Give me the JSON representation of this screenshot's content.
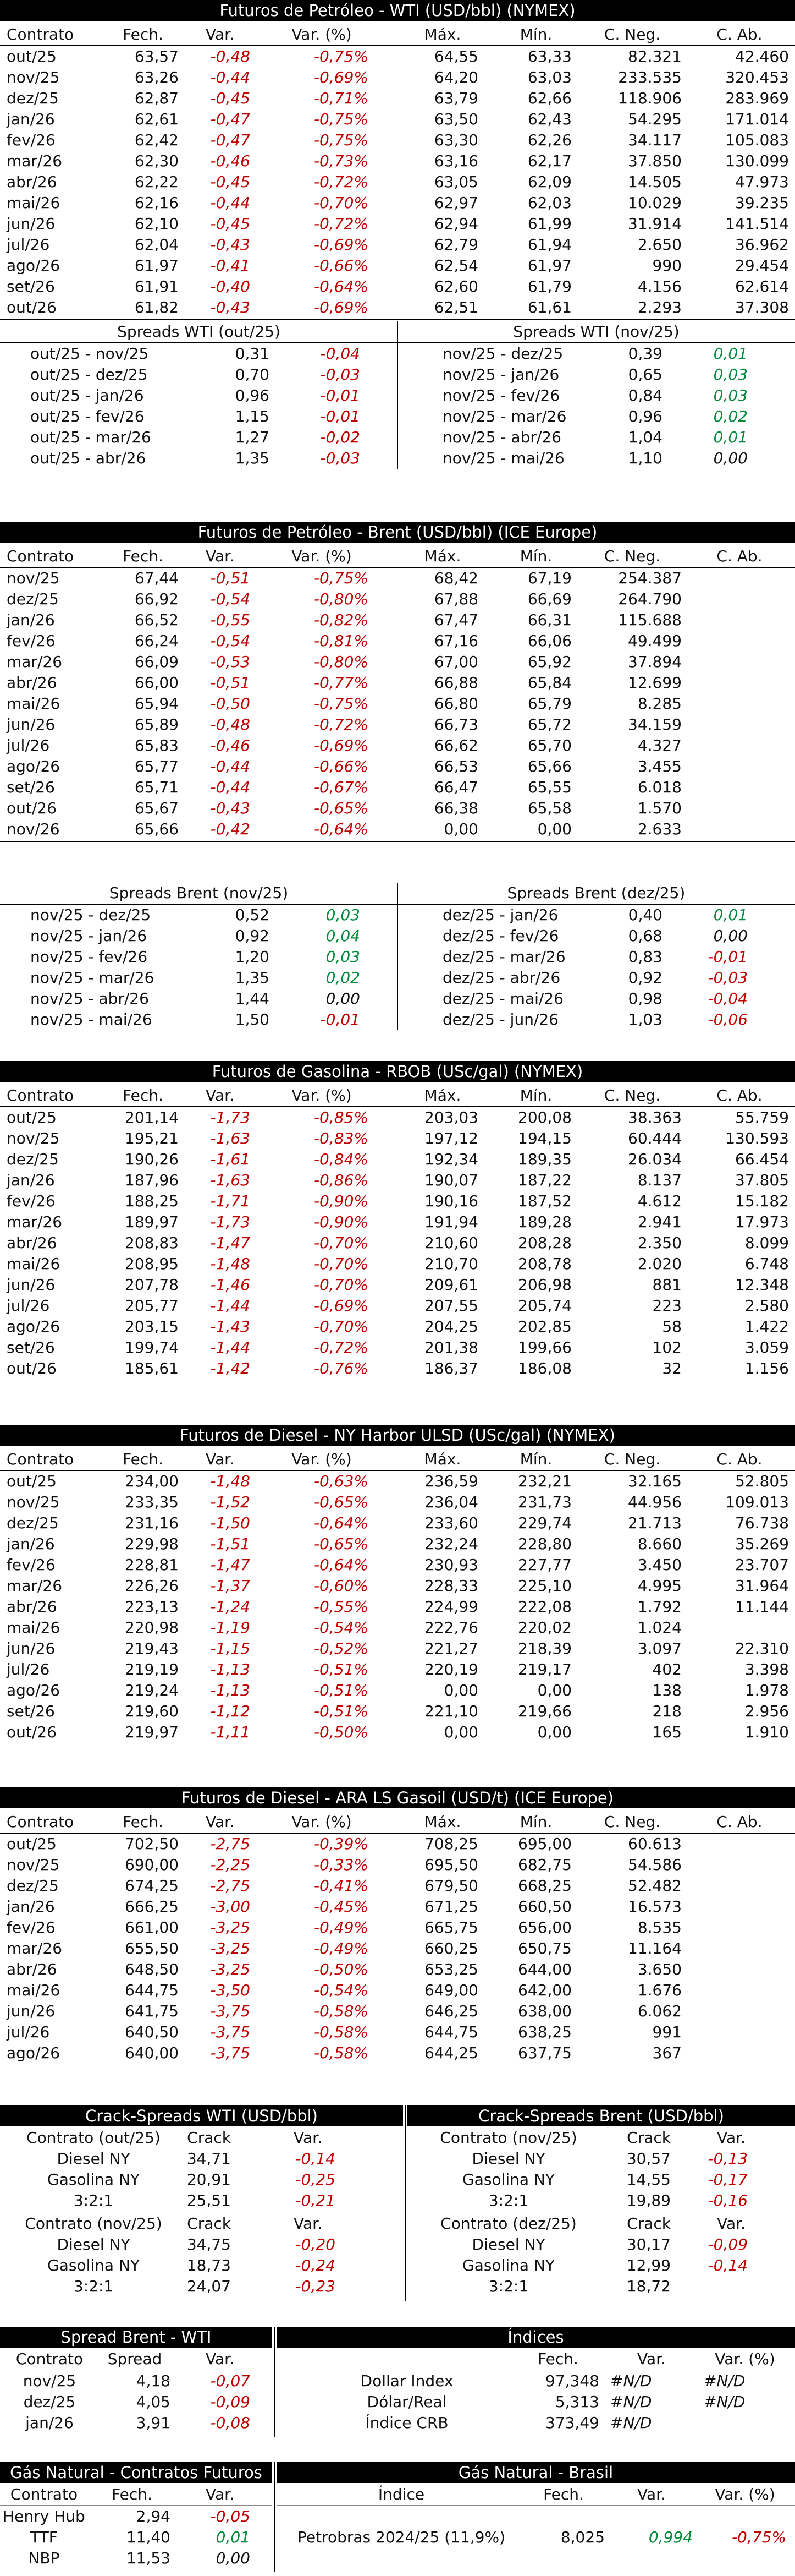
{
  "wti": {
    "title": "Futuros de Petróleo - WTI (USD/bbl) (NYMEX)",
    "headers": [
      "Contrato",
      "Fech.",
      "Var.",
      "Var. (%)",
      "Máx.",
      "Mín.",
      "C. Neg.",
      "C. Ab."
    ],
    "rows": [
      [
        "out/25",
        "63,57",
        "-0,48",
        "-0,75%",
        "64,55",
        "63,33",
        "82.321",
        "42.460"
      ],
      [
        "nov/25",
        "63,26",
        "-0,44",
        "-0,69%",
        "64,20",
        "63,03",
        "233.535",
        "320.453"
      ],
      [
        "dez/25",
        "62,87",
        "-0,45",
        "-0,71%",
        "63,79",
        "62,66",
        "118.906",
        "283.969"
      ],
      [
        "jan/26",
        "62,61",
        "-0,47",
        "-0,75%",
        "63,50",
        "62,43",
        "54.295",
        "171.014"
      ],
      [
        "fev/26",
        "62,42",
        "-0,47",
        "-0,75%",
        "63,30",
        "62,26",
        "34.117",
        "105.083"
      ],
      [
        "mar/26",
        "62,30",
        "-0,46",
        "-0,73%",
        "63,16",
        "62,17",
        "37.850",
        "130.099"
      ],
      [
        "abr/26",
        "62,22",
        "-0,45",
        "-0,72%",
        "63,05",
        "62,09",
        "14.505",
        "47.973"
      ],
      [
        "mai/26",
        "62,16",
        "-0,44",
        "-0,70%",
        "62,97",
        "62,03",
        "10.029",
        "39.235"
      ],
      [
        "jun/26",
        "62,10",
        "-0,45",
        "-0,72%",
        "62,94",
        "61,99",
        "31.914",
        "141.514"
      ],
      [
        "jul/26",
        "62,04",
        "-0,43",
        "-0,69%",
        "62,79",
        "61,94",
        "2.650",
        "36.962"
      ],
      [
        "ago/26",
        "61,97",
        "-0,41",
        "-0,66%",
        "62,54",
        "61,97",
        "990",
        "29.454"
      ],
      [
        "set/26",
        "61,91",
        "-0,40",
        "-0,64%",
        "62,60",
        "61,79",
        "4.156",
        "62.614"
      ],
      [
        "out/26",
        "61,82",
        "-0,43",
        "-0,69%",
        "62,51",
        "61,61",
        "2.293",
        "37.308"
      ]
    ],
    "spreads_left_title": "Spreads WTI (out/25)",
    "spreads_left": [
      [
        "out/25 - nov/25",
        "0,31",
        "-0,04"
      ],
      [
        "out/25 - dez/25",
        "0,70",
        "-0,03"
      ],
      [
        "out/25 - jan/26",
        "0,96",
        "-0,01"
      ],
      [
        "out/25 - fev/26",
        "1,15",
        "-0,01"
      ],
      [
        "out/25 - mar/26",
        "1,27",
        "-0,02"
      ],
      [
        "out/25 - abr/26",
        "1,35",
        "-0,03"
      ]
    ],
    "spreads_right_title": "Spreads WTI (nov/25)",
    "spreads_right": [
      [
        "nov/25 - dez/25",
        "0,39",
        "0,01"
      ],
      [
        "nov/25 - jan/26",
        "0,65",
        "0,03"
      ],
      [
        "nov/25 - fev/26",
        "0,84",
        "0,03"
      ],
      [
        "nov/25 - mar/26",
        "0,96",
        "0,02"
      ],
      [
        "nov/25 - abr/26",
        "1,04",
        "0,01"
      ],
      [
        "nov/25 - mai/26",
        "1,10",
        "0,00"
      ]
    ]
  },
  "brent": {
    "title": "Futuros de Petróleo - Brent (USD/bbl) (ICE Europe)",
    "headers": [
      "Contrato",
      "Fech.",
      "Var.",
      "Var. (%)",
      "Máx.",
      "Mín.",
      "C. Neg.",
      "C. Ab."
    ],
    "rows": [
      [
        "nov/25",
        "67,44",
        "-0,51",
        "-0,75%",
        "68,42",
        "67,19",
        "254.387",
        ""
      ],
      [
        "dez/25",
        "66,92",
        "-0,54",
        "-0,80%",
        "67,88",
        "66,69",
        "264.790",
        ""
      ],
      [
        "jan/26",
        "66,52",
        "-0,55",
        "-0,82%",
        "67,47",
        "66,31",
        "115.688",
        ""
      ],
      [
        "fev/26",
        "66,24",
        "-0,54",
        "-0,81%",
        "67,16",
        "66,06",
        "49.499",
        ""
      ],
      [
        "mar/26",
        "66,09",
        "-0,53",
        "-0,80%",
        "67,00",
        "65,92",
        "37.894",
        ""
      ],
      [
        "abr/26",
        "66,00",
        "-0,51",
        "-0,77%",
        "66,88",
        "65,84",
        "12.699",
        ""
      ],
      [
        "mai/26",
        "65,94",
        "-0,50",
        "-0,75%",
        "66,80",
        "65,79",
        "8.285",
        ""
      ],
      [
        "jun/26",
        "65,89",
        "-0,48",
        "-0,72%",
        "66,73",
        "65,72",
        "34.159",
        ""
      ],
      [
        "jul/26",
        "65,83",
        "-0,46",
        "-0,69%",
        "66,62",
        "65,70",
        "4.327",
        ""
      ],
      [
        "ago/26",
        "65,77",
        "-0,44",
        "-0,66%",
        "66,53",
        "65,66",
        "3.455",
        ""
      ],
      [
        "set/26",
        "65,71",
        "-0,44",
        "-0,67%",
        "66,47",
        "65,55",
        "6.018",
        ""
      ],
      [
        "out/26",
        "65,67",
        "-0,43",
        "-0,65%",
        "66,38",
        "65,58",
        "1.570",
        ""
      ],
      [
        "nov/26",
        "65,66",
        "-0,42",
        "-0,64%",
        "0,00",
        "0,00",
        "2.633",
        ""
      ]
    ],
    "spreads_left_title": "Spreads Brent (nov/25)",
    "spreads_left": [
      [
        "nov/25 - dez/25",
        "0,52",
        "0,03"
      ],
      [
        "nov/25 - jan/26",
        "0,92",
        "0,04"
      ],
      [
        "nov/25 - fev/26",
        "1,20",
        "0,03"
      ],
      [
        "nov/25 - mar/26",
        "1,35",
        "0,02"
      ],
      [
        "nov/25 - abr/26",
        "1,44",
        "0,00"
      ],
      [
        "nov/25 - mai/26",
        "1,50",
        "-0,01"
      ]
    ],
    "spreads_right_title": "Spreads Brent (dez/25)",
    "spreads_right": [
      [
        "dez/25 - jan/26",
        "0,40",
        "0,01"
      ],
      [
        "dez/25 - fev/26",
        "0,68",
        "0,00"
      ],
      [
        "dez/25 - mar/26",
        "0,83",
        "-0,01"
      ],
      [
        "dez/25 - abr/26",
        "0,92",
        "-0,03"
      ],
      [
        "dez/25 - mai/26",
        "0,98",
        "-0,04"
      ],
      [
        "dez/25 - jun/26",
        "1,03",
        "-0,06"
      ]
    ]
  },
  "rbob": {
    "title": "Futuros de Gasolina - RBOB (USc/gal) (NYMEX)",
    "headers": [
      "Contrato",
      "Fech.",
      "Var.",
      "Var. (%)",
      "Máx.",
      "Mín.",
      "C. Neg.",
      "C. Ab."
    ],
    "rows": [
      [
        "out/25",
        "201,14",
        "-1,73",
        "-0,85%",
        "203,03",
        "200,08",
        "38.363",
        "55.759"
      ],
      [
        "nov/25",
        "195,21",
        "-1,63",
        "-0,83%",
        "197,12",
        "194,15",
        "60.444",
        "130.593"
      ],
      [
        "dez/25",
        "190,26",
        "-1,61",
        "-0,84%",
        "192,34",
        "189,35",
        "26.034",
        "66.454"
      ],
      [
        "jan/26",
        "187,96",
        "-1,63",
        "-0,86%",
        "190,07",
        "187,22",
        "8.137",
        "37.805"
      ],
      [
        "fev/26",
        "188,25",
        "-1,71",
        "-0,90%",
        "190,16",
        "187,52",
        "4.612",
        "15.182"
      ],
      [
        "mar/26",
        "189,97",
        "-1,73",
        "-0,90%",
        "191,94",
        "189,28",
        "2.941",
        "17.973"
      ],
      [
        "abr/26",
        "208,83",
        "-1,47",
        "-0,70%",
        "210,60",
        "208,28",
        "2.350",
        "8.099"
      ],
      [
        "mai/26",
        "208,95",
        "-1,48",
        "-0,70%",
        "210,70",
        "208,78",
        "2.020",
        "6.748"
      ],
      [
        "jun/26",
        "207,78",
        "-1,46",
        "-0,70%",
        "209,61",
        "206,98",
        "881",
        "12.348"
      ],
      [
        "jul/26",
        "205,77",
        "-1,44",
        "-0,69%",
        "207,55",
        "205,74",
        "223",
        "2.580"
      ],
      [
        "ago/26",
        "203,15",
        "-1,43",
        "-0,70%",
        "204,25",
        "202,85",
        "58",
        "1.422"
      ],
      [
        "set/26",
        "199,74",
        "-1,44",
        "-0,72%",
        "201,38",
        "199,66",
        "102",
        "3.059"
      ],
      [
        "out/26",
        "185,61",
        "-1,42",
        "-0,76%",
        "186,37",
        "186,08",
        "32",
        "1.156"
      ]
    ]
  },
  "ulsd": {
    "title": "Futuros de Diesel - NY Harbor ULSD (USc/gal) (NYMEX)",
    "headers": [
      "Contrato",
      "Fech.",
      "Var.",
      "Var. (%)",
      "Máx.",
      "Mín.",
      "C. Neg.",
      "C. Ab."
    ],
    "rows": [
      [
        "out/25",
        "234,00",
        "-1,48",
        "-0,63%",
        "236,59",
        "232,21",
        "32.165",
        "52.805"
      ],
      [
        "nov/25",
        "233,35",
        "-1,52",
        "-0,65%",
        "236,04",
        "231,73",
        "44.956",
        "109.013"
      ],
      [
        "dez/25",
        "231,16",
        "-1,50",
        "-0,64%",
        "233,60",
        "229,74",
        "21.713",
        "76.738"
      ],
      [
        "jan/26",
        "229,98",
        "-1,51",
        "-0,65%",
        "232,24",
        "228,80",
        "8.660",
        "35.269"
      ],
      [
        "fev/26",
        "228,81",
        "-1,47",
        "-0,64%",
        "230,93",
        "227,77",
        "3.450",
        "23.707"
      ],
      [
        "mar/26",
        "226,26",
        "-1,37",
        "-0,60%",
        "228,33",
        "225,10",
        "4.995",
        "31.964"
      ],
      [
        "abr/26",
        "223,13",
        "-1,24",
        "-0,55%",
        "224,99",
        "222,08",
        "1.792",
        "11.144"
      ],
      [
        "mai/26",
        "220,98",
        "-1,19",
        "-0,54%",
        "222,76",
        "220,02",
        "1.024",
        ""
      ],
      [
        "jun/26",
        "219,43",
        "-1,15",
        "-0,52%",
        "221,27",
        "218,39",
        "3.097",
        "22.310"
      ],
      [
        "jul/26",
        "219,19",
        "-1,13",
        "-0,51%",
        "220,19",
        "219,17",
        "402",
        "3.398"
      ],
      [
        "ago/26",
        "219,24",
        "-1,13",
        "-0,51%",
        "0,00",
        "0,00",
        "138",
        "1.978"
      ],
      [
        "set/26",
        "219,60",
        "-1,12",
        "-0,51%",
        "221,10",
        "219,66",
        "218",
        "2.956"
      ],
      [
        "out/26",
        "219,97",
        "-1,11",
        "-0,50%",
        "0,00",
        "0,00",
        "165",
        "1.910"
      ]
    ]
  },
  "gasoil": {
    "title": "Futuros de Diesel - ARA LS Gasoil (USD/t) (ICE Europe)",
    "headers": [
      "Contrato",
      "Fech.",
      "Var.",
      "Var. (%)",
      "Máx.",
      "Mín.",
      "C. Neg.",
      "C. Ab."
    ],
    "rows": [
      [
        "out/25",
        "702,50",
        "-2,75",
        "-0,39%",
        "708,25",
        "695,00",
        "60.613",
        ""
      ],
      [
        "nov/25",
        "690,00",
        "-2,25",
        "-0,33%",
        "695,50",
        "682,75",
        "54.586",
        ""
      ],
      [
        "dez/25",
        "674,25",
        "-2,75",
        "-0,41%",
        "679,50",
        "668,25",
        "52.482",
        ""
      ],
      [
        "jan/26",
        "666,25",
        "-3,00",
        "-0,45%",
        "671,25",
        "660,50",
        "16.573",
        ""
      ],
      [
        "fev/26",
        "661,00",
        "-3,25",
        "-0,49%",
        "665,75",
        "656,00",
        "8.535",
        ""
      ],
      [
        "mar/26",
        "655,50",
        "-3,25",
        "-0,49%",
        "660,25",
        "650,75",
        "11.164",
        ""
      ],
      [
        "abr/26",
        "648,50",
        "-3,25",
        "-0,50%",
        "653,25",
        "644,00",
        "3.650",
        ""
      ],
      [
        "mai/26",
        "644,75",
        "-3,50",
        "-0,54%",
        "649,00",
        "642,00",
        "1.676",
        ""
      ],
      [
        "jun/26",
        "641,75",
        "-3,75",
        "-0,58%",
        "646,25",
        "638,00",
        "6.062",
        ""
      ],
      [
        "jul/26",
        "640,50",
        "-3,75",
        "-0,58%",
        "644,75",
        "638,25",
        "991",
        ""
      ],
      [
        "ago/26",
        "640,00",
        "-3,75",
        "-0,58%",
        "644,25",
        "637,75",
        "367",
        ""
      ]
    ]
  },
  "crack": {
    "left_title": "Crack-Spreads WTI (USD/bbl)",
    "right_title": "Crack-Spreads Brent (USD/bbl)",
    "left_groups": [
      {
        "headers": [
          "Contrato (out/25)",
          "Crack",
          "Var."
        ],
        "rows": [
          [
            "Diesel NY",
            "34,71",
            "-0,14"
          ],
          [
            "Gasolina NY",
            "20,91",
            "-0,25"
          ],
          [
            "3:2:1",
            "25,51",
            "-0,21"
          ]
        ]
      },
      {
        "headers": [
          "Contrato (nov/25)",
          "Crack",
          "Var."
        ],
        "rows": [
          [
            "Diesel NY",
            "34,75",
            "-0,20"
          ],
          [
            "Gasolina NY",
            "18,73",
            "-0,24"
          ],
          [
            "3:2:1",
            "24,07",
            "-0,23"
          ]
        ]
      }
    ],
    "right_groups": [
      {
        "headers": [
          "Contrato (nov/25)",
          "Crack",
          "Var."
        ],
        "rows": [
          [
            "Diesel NY",
            "30,57",
            "-0,13"
          ],
          [
            "Gasolina NY",
            "14,55",
            "-0,17"
          ],
          [
            "3:2:1",
            "19,89",
            "-0,16"
          ]
        ]
      },
      {
        "headers": [
          "Contrato (dez/25)",
          "Crack",
          "Var."
        ],
        "rows": [
          [
            "Diesel NY",
            "30,17",
            "-0,09"
          ],
          [
            "Gasolina NY",
            "12,99",
            "-0,14"
          ],
          [
            "3:2:1",
            "18,72",
            ""
          ]
        ]
      }
    ]
  },
  "spread_bw": {
    "title": "Spread Brent - WTI",
    "headers": [
      "Contrato",
      "Spread",
      "Var."
    ],
    "rows": [
      [
        "nov/25",
        "4,18",
        "-0,07"
      ],
      [
        "dez/25",
        "4,05",
        "-0,09"
      ],
      [
        "jan/26",
        "3,91",
        "-0,08"
      ]
    ]
  },
  "indices": {
    "title": "Índices",
    "headers": [
      "",
      "Fech.",
      "Var.",
      "Var. (%)"
    ],
    "rows": [
      [
        "Dollar Index",
        "97,348",
        "#N/D",
        "#N/D"
      ],
      [
        "Dólar/Real",
        "5,313",
        "#N/D",
        "#N/D"
      ],
      [
        "Índice CRB",
        "373,49",
        "#N/D",
        ""
      ]
    ]
  },
  "gas_futures": {
    "title": "Gás Natural - Contratos Futuros",
    "headers": [
      "Contrato",
      "Fech.",
      "Var."
    ],
    "rows": [
      [
        "Henry Hub",
        "2,94",
        "-0,05"
      ],
      [
        "TTF",
        "11,40",
        "0,01"
      ],
      [
        "NBP",
        "11,53",
        "0,00"
      ]
    ]
  },
  "gas_brasil": {
    "title": "Gás Natural - Brasil",
    "headers": [
      "Índice",
      "Fech.",
      "Var.",
      "Var. (%)"
    ],
    "rows": [
      [
        "Petrobras 2024/25 (11,9%)",
        "8,025",
        "0,994",
        "-0,75%"
      ]
    ]
  },
  "colors": {
    "negative": "#c00000",
    "positive": "#008a3a",
    "bar": "#000000"
  }
}
